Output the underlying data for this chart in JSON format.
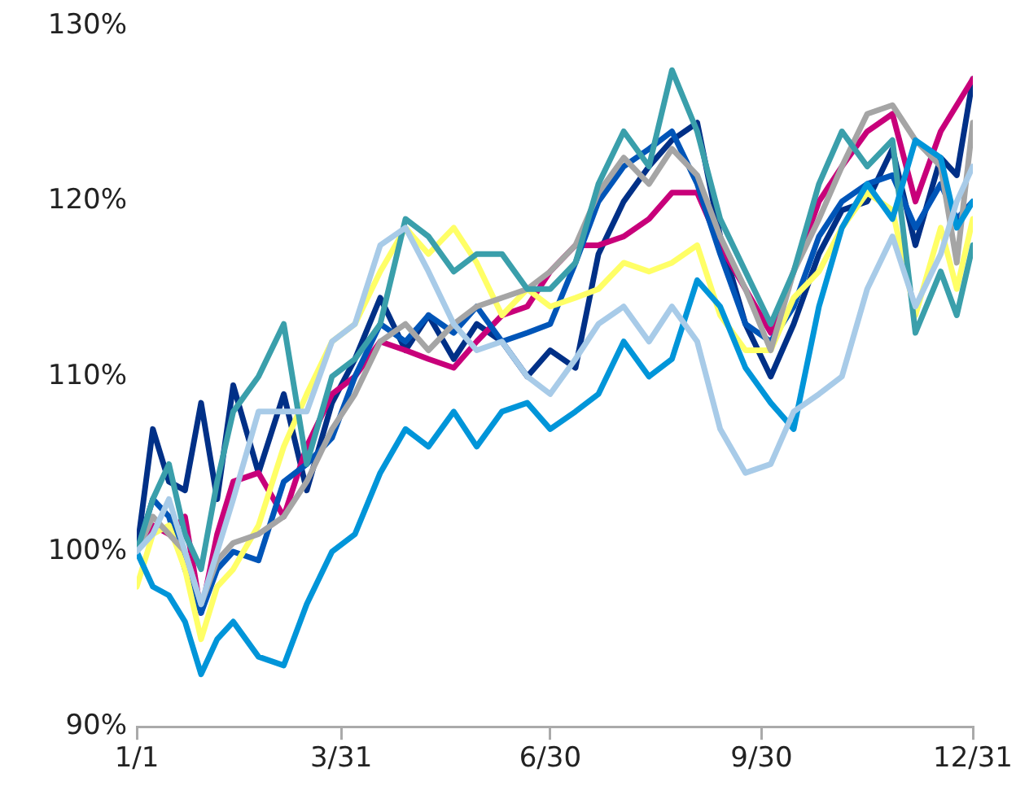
{
  "chart_data": {
    "type": "line",
    "marker": "none",
    "x": [
      "--01-01",
      "--01-08",
      "--01-15",
      "--01-22",
      "--01-29",
      "--02-05",
      "--02-12",
      "--02-23",
      "--03-06",
      "--03-16",
      "--03-27",
      "--04-06",
      "--04-17",
      "--04-28",
      "--05-08",
      "--05-19",
      "--05-29",
      "--06-09",
      "--06-20",
      "--06-30",
      "--07-11",
      "--07-21",
      "--08-01",
      "--08-12",
      "--08-22",
      "--09-02",
      "--09-12",
      "--09-23",
      "--10-04",
      "--10-14",
      "--10-25",
      "--11-04",
      "--11-15",
      "--11-26",
      "--12-06",
      "--12-17",
      "--12-24",
      "--12-31"
    ],
    "xlim": [
      "--01-01",
      "--12-31"
    ],
    "xticks": [
      {
        "value": "--01-01",
        "label": "1/1"
      },
      {
        "value": "--03-31",
        "label": "3/31"
      },
      {
        "value": "--06-30",
        "label": "6/30"
      },
      {
        "value": "--09-30",
        "label": "9/30"
      },
      {
        "value": "--12-31",
        "label": "12/31"
      }
    ],
    "ylim": [
      90,
      130
    ],
    "yticks": [
      {
        "value": 90,
        "label": "90%"
      },
      {
        "value": 100,
        "label": "100%"
      },
      {
        "value": 110,
        "label": "110%"
      },
      {
        "value": 120,
        "label": "120%"
      },
      {
        "value": 130,
        "label": "130%"
      }
    ],
    "series": [
      {
        "color": "#a8cbe8",
        "values": [
          100,
          101,
          103,
          100,
          97,
          100,
          103,
          108,
          108,
          108,
          112,
          113,
          117.5,
          118.5,
          116,
          113,
          111.5,
          112,
          110,
          109,
          111,
          113,
          114,
          112,
          114,
          112,
          107,
          104.5,
          105,
          108,
          109,
          110,
          115,
          118,
          114,
          117,
          120,
          122
        ]
      },
      {
        "color": "#0095d9",
        "values": [
          100,
          98,
          97.5,
          96,
          93,
          95,
          96,
          94,
          93.5,
          97,
          100,
          101,
          104.5,
          107,
          106,
          108,
          106,
          108,
          108.5,
          107,
          108,
          109,
          112,
          110,
          111,
          115.5,
          114,
          110.5,
          108.5,
          107,
          114,
          118.5,
          121,
          119,
          123.5,
          122.5,
          118.5,
          120
        ]
      },
      {
        "color": "#3a9fab",
        "values": [
          100,
          103,
          105,
          101,
          99,
          104,
          108,
          110,
          113,
          105,
          110,
          111,
          113,
          119,
          118,
          116,
          117,
          117,
          115,
          115,
          116.5,
          121,
          124,
          122,
          127.5,
          124,
          119,
          116,
          113,
          116,
          121,
          124,
          122,
          123.5,
          112.5,
          116,
          113.5,
          117.5
        ]
      },
      {
        "color": "#a5a5a5",
        "values": [
          100,
          102,
          101,
          100,
          97,
          99.5,
          100.5,
          101,
          102,
          104,
          107,
          109,
          112,
          113,
          111.5,
          113,
          114,
          114.5,
          115,
          116,
          117.5,
          120.5,
          122.5,
          121,
          123,
          121.5,
          118,
          115,
          111.5,
          116,
          119,
          122,
          125,
          125.5,
          123.5,
          122,
          116.5,
          124.5
        ]
      },
      {
        "color": "#ffff66",
        "values": [
          98,
          101,
          101.5,
          99,
          95,
          98,
          99,
          101.5,
          106,
          109,
          112,
          113,
          116,
          118.5,
          117,
          118.5,
          116.5,
          113.5,
          115,
          114,
          114.5,
          115,
          116.5,
          116,
          116.5,
          117.5,
          113.5,
          111.5,
          111.5,
          114.5,
          116,
          118.5,
          120.5,
          119.5,
          113.5,
          118.5,
          115,
          119
        ]
      },
      {
        "color": "#0055b8",
        "values": [
          100,
          103,
          102,
          99,
          96.5,
          99,
          100,
          99.5,
          104,
          105,
          106.5,
          110,
          113,
          112,
          113.5,
          112.5,
          114,
          112,
          112.5,
          113,
          116.5,
          120,
          122,
          123,
          124,
          121,
          117,
          113,
          112,
          114,
          118,
          120,
          121,
          121.5,
          118.5,
          121,
          119,
          120
        ]
      },
      {
        "color": "#c8007a",
        "values": [
          100,
          101.5,
          101,
          102,
          96.5,
          101,
          104,
          104.5,
          102,
          106,
          109,
          110,
          112,
          111.5,
          111,
          110.5,
          112,
          113.5,
          114,
          116,
          117.5,
          117.5,
          118,
          119,
          120.5,
          120.5,
          117.5,
          115,
          112.5,
          116,
          120,
          122,
          124,
          125,
          120,
          124,
          125.5,
          127
        ]
      },
      {
        "color": "#003087",
        "values": [
          100,
          107,
          104,
          103.5,
          108.5,
          103,
          109.5,
          104.5,
          109,
          103.5,
          108.5,
          111,
          114.5,
          111.5,
          113.5,
          111,
          113,
          112,
          110,
          111.5,
          110.5,
          117,
          120,
          122,
          123.5,
          124.5,
          118,
          113,
          110,
          113,
          117,
          119.5,
          120,
          123,
          117.5,
          122.5,
          121.5,
          127
        ]
      }
    ]
  }
}
